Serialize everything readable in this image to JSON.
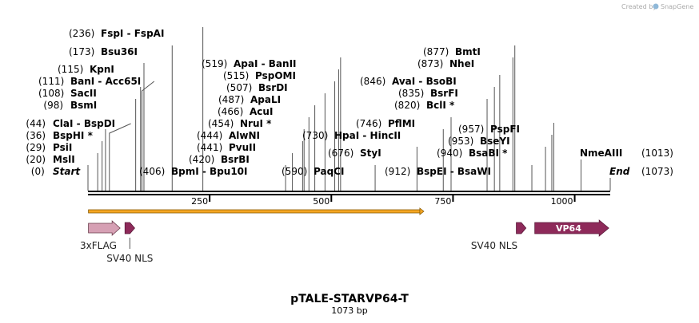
{
  "credit": {
    "text": "Created by",
    "brand": "SnapGene"
  },
  "plasmid": {
    "name": "pTALE-STARVP64-T",
    "length_label": "1073 bp",
    "length": 1073
  },
  "colors": {
    "line": "#000000",
    "orf_fill": "#f5a623",
    "orf_stroke": "#8a5a00",
    "flag": "#d6a0b4",
    "nls": "#8e2a5a",
    "vp64": "#8e2a5a",
    "leader": "#555555"
  },
  "axis_ticks": [
    {
      "pos": 250,
      "label": "250"
    },
    {
      "pos": 500,
      "label": "500"
    },
    {
      "pos": 750,
      "label": "750"
    },
    {
      "pos": 1000,
      "label": "1000"
    }
  ],
  "sites": [
    {
      "num": "(0)",
      "name": "Start",
      "italic": true,
      "pos": 0,
      "side": "left"
    },
    {
      "num": "(20)",
      "name": "MslI",
      "pos": 20,
      "side": "left"
    },
    {
      "num": "(29)",
      "name": "PsiI",
      "pos": 29,
      "side": "left"
    },
    {
      "num": "(36)",
      "name": "BspHI *",
      "pos": 36,
      "side": "left"
    },
    {
      "num": "(44)",
      "name": "ClaI  - BspDI",
      "pos": 44,
      "side": "left"
    },
    {
      "num": "(98)",
      "name": "BsmI",
      "pos": 98,
      "side": "left"
    },
    {
      "num": "(108)",
      "name": "SacII",
      "pos": 108,
      "side": "left"
    },
    {
      "num": "(111)",
      "name": "BanI  - Acc65I",
      "pos": 111,
      "side": "left"
    },
    {
      "num": "(115)",
      "name": "KpnI",
      "pos": 115,
      "side": "left"
    },
    {
      "num": "(173)",
      "name": "Bsu36I",
      "pos": 173,
      "side": "left"
    },
    {
      "num": "(236)",
      "name": "FspI  - FspAI",
      "pos": 236,
      "side": "left"
    },
    {
      "num": "(406)",
      "name": "BpmI  - Bpu10I",
      "pos": 406,
      "side": "left"
    },
    {
      "num": "(420)",
      "name": "BsrBI",
      "pos": 420,
      "side": "left"
    },
    {
      "num": "(441)",
      "name": "PvuII",
      "pos": 441,
      "side": "left"
    },
    {
      "num": "(444)",
      "name": "AlwNI",
      "pos": 444,
      "side": "left"
    },
    {
      "num": "(454)",
      "name": "NruI *",
      "pos": 454,
      "side": "left"
    },
    {
      "num": "(466)",
      "name": "AcuI",
      "pos": 466,
      "side": "left"
    },
    {
      "num": "(487)",
      "name": "ApaLI",
      "pos": 487,
      "side": "left"
    },
    {
      "num": "(507)",
      "name": "BsrDI",
      "pos": 507,
      "side": "left"
    },
    {
      "num": "(515)",
      "name": "PspOMI",
      "pos": 515,
      "side": "left"
    },
    {
      "num": "(519)",
      "name": "ApaI  - BanII",
      "pos": 519,
      "side": "left"
    },
    {
      "num": "(590)",
      "name": "PaqCI",
      "pos": 590,
      "side": "left"
    },
    {
      "num": "(676)",
      "name": "StyI",
      "pos": 676,
      "side": "left"
    },
    {
      "num": "(730)",
      "name": "HpaI  - HincII",
      "pos": 730,
      "side": "left"
    },
    {
      "num": "(746)",
      "name": "PflMI",
      "pos": 746,
      "side": "left"
    },
    {
      "num": "(912)",
      "name": "BspEI  - BsaWI",
      "pos": 912,
      "side": "left"
    },
    {
      "num": "(820)",
      "name": "BclI *",
      "pos": 820,
      "side": "left"
    },
    {
      "num": "(835)",
      "name": "BsrFI",
      "pos": 835,
      "side": "left"
    },
    {
      "num": "(846)",
      "name": "AvaI  - BsoBI",
      "pos": 846,
      "side": "left"
    },
    {
      "num": "(873)",
      "name": "NheI",
      "pos": 873,
      "side": "left"
    },
    {
      "num": "(877)",
      "name": "BmtI",
      "pos": 877,
      "side": "left"
    },
    {
      "num": "(940)",
      "name": "BsaBI *",
      "pos": 940,
      "side": "left"
    },
    {
      "num": "(953)",
      "name": "BseYI",
      "pos": 953,
      "side": "left"
    },
    {
      "num": "(957)",
      "name": "PspFI",
      "pos": 957,
      "side": "left"
    },
    {
      "num": "(1013)",
      "name": "NmeAIII",
      "pos": 1013,
      "side": "right"
    },
    {
      "num": "(1073)",
      "name": "End",
      "italic": true,
      "pos": 1073,
      "side": "right"
    }
  ],
  "features": [
    {
      "name": "3xFLAG",
      "start": 1,
      "end": 66,
      "type": "flag"
    },
    {
      "name": "SV40 NLS",
      "start": 76,
      "end": 96,
      "type": "nls",
      "label_below": true
    },
    {
      "name": "SV40 NLS",
      "start": 880,
      "end": 900,
      "type": "nls"
    },
    {
      "name": "VP64",
      "start": 918,
      "end": 1070,
      "type": "vp64",
      "label_inside": true
    }
  ],
  "orf": {
    "start": 1,
    "end": 690
  }
}
